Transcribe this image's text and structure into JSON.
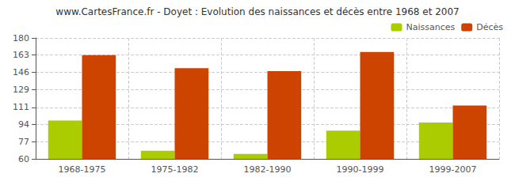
{
  "chart_data": {
    "type": "bar",
    "title": "www.CartesFrance.fr - Doyet : Evolution des naissances et décès entre 1968 et 2007",
    "categories": [
      "1968-1975",
      "1975-1982",
      "1982-1990",
      "1990-1999",
      "1999-2007"
    ],
    "series": [
      {
        "name": "Naissances",
        "color": "#aacc00",
        "values": [
          98,
          68,
          65,
          88,
          96
        ]
      },
      {
        "name": "Décès",
        "color": "#cc4400",
        "values": [
          163,
          150,
          147,
          166,
          113
        ]
      }
    ],
    "ylim": [
      60,
      180
    ],
    "yticks": [
      60,
      77,
      94,
      111,
      129,
      146,
      163,
      180
    ],
    "grid": true,
    "legend": "upper right"
  }
}
